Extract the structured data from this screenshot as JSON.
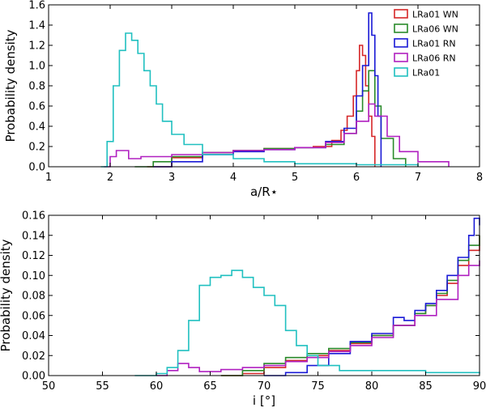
{
  "chart_data": [
    {
      "type": "line",
      "xlabel": "a/R⋆",
      "ylabel": "Probability density",
      "xlim": [
        1,
        8
      ],
      "ylim": [
        0,
        1.6
      ],
      "xticks": [
        "1",
        "2",
        "3",
        "4",
        "5",
        "6",
        "7",
        "8"
      ],
      "yticks": [
        "0.0",
        "0.2",
        "0.4",
        "0.6",
        "0.8",
        "1.0",
        "1.2",
        "1.4",
        "1.6"
      ],
      "legend": {
        "location": "top-right"
      },
      "series": [
        {
          "name": "LRa01 WN",
          "color": "#d62728",
          "points": [
            [
              2.6,
              0
            ],
            [
              3.0,
              0.09
            ],
            [
              3.5,
              0.14
            ],
            [
              4.0,
              0.16
            ],
            [
              4.5,
              0.18
            ],
            [
              5.0,
              0.19
            ],
            [
              5.3,
              0.2
            ],
            [
              5.6,
              0.26
            ],
            [
              5.75,
              0.36
            ],
            [
              5.85,
              0.5
            ],
            [
              5.95,
              0.7
            ],
            [
              6.0,
              0.95
            ],
            [
              6.05,
              1.2
            ],
            [
              6.1,
              1.1
            ],
            [
              6.15,
              0.8
            ],
            [
              6.2,
              0.5
            ],
            [
              6.25,
              0.3
            ],
            [
              6.3,
              0.0
            ]
          ]
        },
        {
          "name": "LRa06 WN",
          "color": "#2a8a2a",
          "points": [
            [
              2.4,
              0
            ],
            [
              2.7,
              0.05
            ],
            [
              3.0,
              0.1
            ],
            [
              3.5,
              0.14
            ],
            [
              4.0,
              0.16
            ],
            [
              4.5,
              0.18
            ],
            [
              5.0,
              0.19
            ],
            [
              5.5,
              0.22
            ],
            [
              5.8,
              0.33
            ],
            [
              6.0,
              0.55
            ],
            [
              6.1,
              0.75
            ],
            [
              6.2,
              0.95
            ],
            [
              6.3,
              0.6
            ],
            [
              6.4,
              0.28
            ],
            [
              6.6,
              0.08
            ],
            [
              6.8,
              0.0
            ]
          ]
        },
        {
          "name": "LRa01 RN",
          "color": "#1a1ad6",
          "points": [
            [
              2.7,
              0
            ],
            [
              3.0,
              0.05
            ],
            [
              3.5,
              0.12
            ],
            [
              4.0,
              0.15
            ],
            [
              4.5,
              0.17
            ],
            [
              5.0,
              0.19
            ],
            [
              5.5,
              0.25
            ],
            [
              5.8,
              0.38
            ],
            [
              6.0,
              0.7
            ],
            [
              6.1,
              1.0
            ],
            [
              6.2,
              1.52
            ],
            [
              6.25,
              1.3
            ],
            [
              6.3,
              0.9
            ],
            [
              6.35,
              0.5
            ],
            [
              6.4,
              0.0
            ]
          ]
        },
        {
          "name": "LRa06 RN",
          "color": "#b020c0",
          "points": [
            [
              1.9,
              0
            ],
            [
              2.0,
              0.1
            ],
            [
              2.1,
              0.16
            ],
            [
              2.3,
              0.08
            ],
            [
              2.5,
              0.1
            ],
            [
              3.0,
              0.12
            ],
            [
              3.5,
              0.14
            ],
            [
              4.0,
              0.16
            ],
            [
              4.5,
              0.17
            ],
            [
              5.0,
              0.19
            ],
            [
              5.5,
              0.24
            ],
            [
              5.8,
              0.33
            ],
            [
              6.0,
              0.45
            ],
            [
              6.2,
              0.62
            ],
            [
              6.3,
              0.5
            ],
            [
              6.5,
              0.3
            ],
            [
              6.7,
              0.15
            ],
            [
              7.0,
              0.05
            ],
            [
              7.5,
              0.0
            ]
          ]
        },
        {
          "name": "LRa01",
          "color": "#20c0c0",
          "points": [
            [
              1.85,
              0
            ],
            [
              1.95,
              0.25
            ],
            [
              2.05,
              0.8
            ],
            [
              2.15,
              1.15
            ],
            [
              2.25,
              1.32
            ],
            [
              2.35,
              1.25
            ],
            [
              2.45,
              1.12
            ],
            [
              2.55,
              0.95
            ],
            [
              2.65,
              0.8
            ],
            [
              2.75,
              0.62
            ],
            [
              2.85,
              0.45
            ],
            [
              3.0,
              0.32
            ],
            [
              3.2,
              0.22
            ],
            [
              3.5,
              0.12
            ],
            [
              4.0,
              0.08
            ],
            [
              4.5,
              0.05
            ],
            [
              5.0,
              0.03
            ],
            [
              6.0,
              0.02
            ],
            [
              7.0,
              0.0
            ]
          ]
        }
      ]
    },
    {
      "type": "line",
      "xlabel": "i [°]",
      "ylabel": "Probability density",
      "xlim": [
        50,
        90
      ],
      "ylim": [
        0,
        0.16
      ],
      "xticks": [
        "50",
        "55",
        "60",
        "65",
        "70",
        "75",
        "80",
        "85",
        "90"
      ],
      "yticks": [
        "0.00",
        "0.02",
        "0.04",
        "0.06",
        "0.08",
        "0.10",
        "0.12",
        "0.14",
        "0.16"
      ],
      "series": [
        {
          "name": "LRa01 WN",
          "color": "#d62728",
          "points": [
            [
              66,
              0
            ],
            [
              68,
              0.002
            ],
            [
              70,
              0.008
            ],
            [
              72,
              0.015
            ],
            [
              74,
              0.02
            ],
            [
              76,
              0.025
            ],
            [
              78,
              0.032
            ],
            [
              80,
              0.04
            ],
            [
              82,
              0.05
            ],
            [
              84,
              0.062
            ],
            [
              85,
              0.07
            ],
            [
              86,
              0.08
            ],
            [
              87,
              0.092
            ],
            [
              88,
              0.11
            ],
            [
              89,
              0.125
            ],
            [
              90,
              0.14
            ]
          ]
        },
        {
          "name": "LRa06 WN",
          "color": "#2a8a2a",
          "points": [
            [
              66,
              0
            ],
            [
              68,
              0.005
            ],
            [
              70,
              0.012
            ],
            [
              72,
              0.018
            ],
            [
              74,
              0.022
            ],
            [
              76,
              0.027
            ],
            [
              78,
              0.033
            ],
            [
              80,
              0.04
            ],
            [
              82,
              0.05
            ],
            [
              84,
              0.062
            ],
            [
              85,
              0.07
            ],
            [
              86,
              0.082
            ],
            [
              87,
              0.095
            ],
            [
              88,
              0.115
            ],
            [
              89,
              0.13
            ],
            [
              90,
              0.14
            ]
          ]
        },
        {
          "name": "LRa01 RN",
          "color": "#1a1ad6",
          "points": [
            [
              70,
              0
            ],
            [
              72,
              0.003
            ],
            [
              74,
              0.01
            ],
            [
              76,
              0.022
            ],
            [
              78,
              0.034
            ],
            [
              80,
              0.042
            ],
            [
              82,
              0.058
            ],
            [
              83,
              0.055
            ],
            [
              84,
              0.065
            ],
            [
              85,
              0.072
            ],
            [
              86,
              0.085
            ],
            [
              87,
              0.1
            ],
            [
              88,
              0.118
            ],
            [
              89,
              0.14
            ],
            [
              89.5,
              0.157
            ],
            [
              90,
              0.15
            ]
          ]
        },
        {
          "name": "LRa06 RN",
          "color": "#b020c0",
          "points": [
            [
              60,
              0
            ],
            [
              61,
              0.005
            ],
            [
              62,
              0.012
            ],
            [
              63,
              0.008
            ],
            [
              64,
              0.004
            ],
            [
              66,
              0.006
            ],
            [
              68,
              0.008
            ],
            [
              70,
              0.01
            ],
            [
              72,
              0.014
            ],
            [
              74,
              0.018
            ],
            [
              76,
              0.024
            ],
            [
              78,
              0.03
            ],
            [
              80,
              0.038
            ],
            [
              82,
              0.05
            ],
            [
              84,
              0.06
            ],
            [
              86,
              0.076
            ],
            [
              88,
              0.1
            ],
            [
              89,
              0.11
            ],
            [
              90,
              0.115
            ]
          ]
        },
        {
          "name": "LRa01",
          "color": "#20c0c0",
          "points": [
            [
              58,
              0
            ],
            [
              60,
              0.002
            ],
            [
              61,
              0.008
            ],
            [
              62,
              0.025
            ],
            [
              63,
              0.055
            ],
            [
              64,
              0.09
            ],
            [
              65,
              0.098
            ],
            [
              66,
              0.1
            ],
            [
              67,
              0.105
            ],
            [
              68,
              0.098
            ],
            [
              69,
              0.088
            ],
            [
              70,
              0.08
            ],
            [
              71,
              0.07
            ],
            [
              72,
              0.045
            ],
            [
              73,
              0.03
            ],
            [
              74,
              0.02
            ],
            [
              75,
              0.01
            ],
            [
              77,
              0.005
            ],
            [
              80,
              0.005
            ],
            [
              85,
              0.003
            ],
            [
              90,
              0.002
            ]
          ]
        }
      ]
    }
  ]
}
